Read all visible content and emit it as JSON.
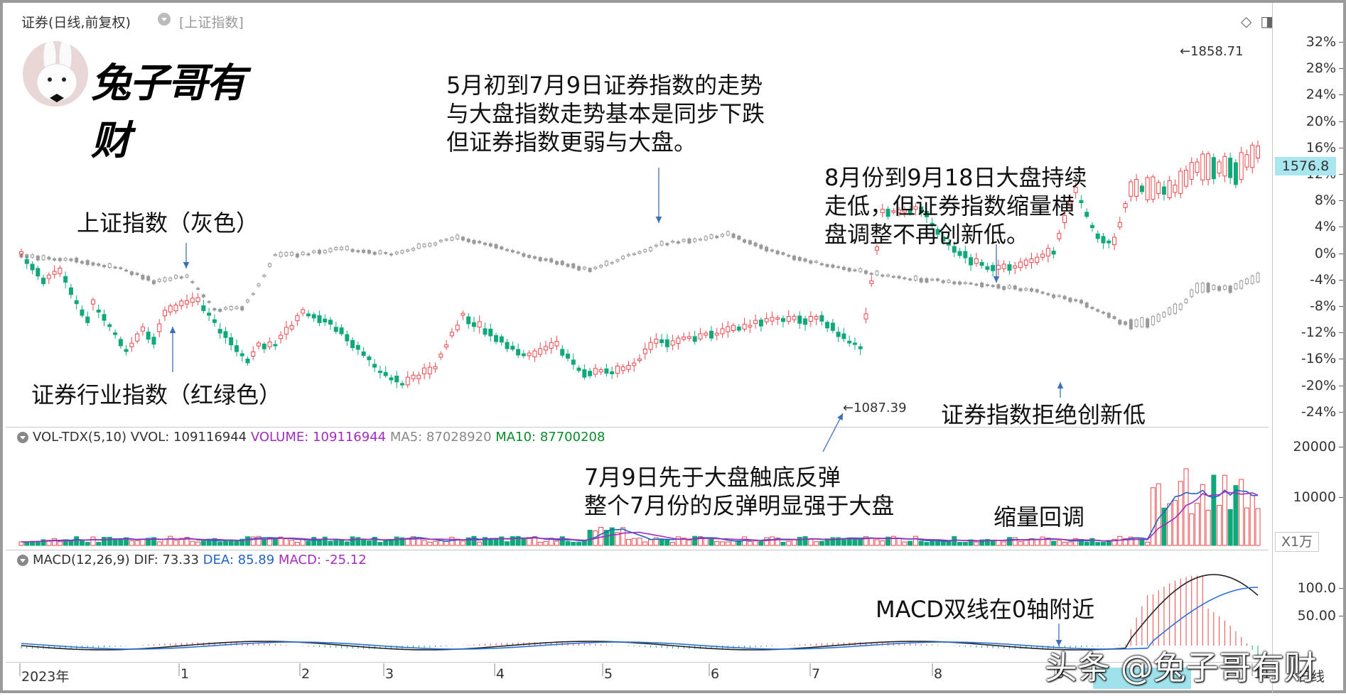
{
  "header": {
    "title": "证券(日线,前复权)",
    "overlay": "[上证指数]"
  },
  "logo": {
    "text": "兔子哥有财"
  },
  "y_axis_labels": [
    "32%",
    "28%",
    "24%",
    "20%",
    "16%",
    "12%",
    "8%",
    "4%",
    "0%",
    "-4%",
    "-8%",
    "-12%",
    "-16%",
    "-20%",
    "-24%"
  ],
  "vol_axis_labels": [
    "20000",
    "10000"
  ],
  "macd_axis_labels": [
    "100.0",
    "50.00"
  ],
  "current_price": "1576.8",
  "peak_label": "1858.71",
  "low_label": "1087.39",
  "vol_unit": "X1万",
  "volume_indicator": {
    "name": "VOL-TDX(5,10)",
    "vvol": "VVOL: 109116944",
    "volume": "VOLUME: 109116944",
    "ma5": "MA5: 87028920",
    "ma10": "MA10: 87700208"
  },
  "macd_indicator": {
    "name": "MACD(12,26,9)",
    "dif": "DIF: 73.33",
    "dea": "DEA: 85.89",
    "macd": "MACD: -25.12"
  },
  "x_axis_labels": [
    {
      "label": "2023年"
    },
    {
      "label": "1"
    },
    {
      "label": "2"
    },
    {
      "label": "3"
    },
    {
      "label": "4"
    },
    {
      "label": "5"
    },
    {
      "label": "6"
    },
    {
      "label": "7"
    },
    {
      "label": "8"
    },
    {
      "label": "9"
    },
    {
      "label": "11"
    },
    {
      "label": "日线"
    }
  ],
  "annotations": {
    "a1_l1": "5月初到7月9日证券指数的走势",
    "a1_l2": "与大盘指数走势基本是同步下跌",
    "a1_l3": "但证券指数更弱与大盘。",
    "a2": "上证指数（灰色）",
    "a3": "证券行业指数（红绿色）",
    "a4_l1": "8月份到9月18日大盘持续",
    "a4_l2": "走低，但证券指数缩量横",
    "a4_l3": "盘调整不再创新低。",
    "a5": "证券指数拒绝创新低",
    "a6_l1": "7月9日先于大盘触底反弹",
    "a6_l2": "整个7月份的反弹明显强于大盘",
    "a7": "缩量回调",
    "a8": "MACD双线在0轴附近"
  },
  "watermark": "头条 @兔子哥有财",
  "colors": {
    "up": "#e8474b",
    "down": "#10a87a",
    "index": "#9a9a9a",
    "ma5": "#1f63c9",
    "ma10": "#a12cbf"
  }
}
